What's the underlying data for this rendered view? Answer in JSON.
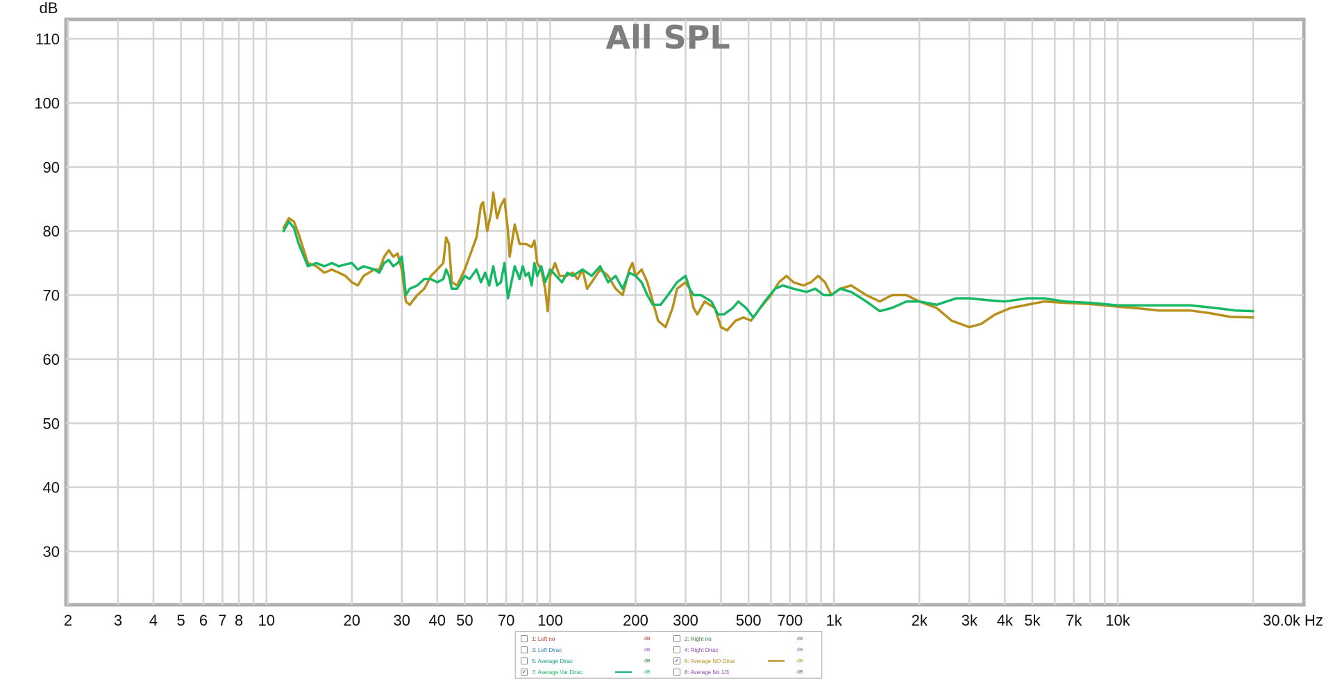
{
  "chart_data": {
    "type": "line",
    "title": "All SPL",
    "ylabel": "dB",
    "xunit": "Hz",
    "xscale": "log",
    "xlim": [
      2,
      30000
    ],
    "ylim": [
      21,
      113
    ],
    "grid": true,
    "yticks": [
      {
        "v": 30,
        "label": "30"
      },
      {
        "v": 40,
        "label": "40"
      },
      {
        "v": 50,
        "label": "50"
      },
      {
        "v": 60,
        "label": "60"
      },
      {
        "v": 70,
        "label": "70"
      },
      {
        "v": 80,
        "label": "80"
      },
      {
        "v": 90,
        "label": "90"
      },
      {
        "v": 100,
        "label": "100"
      },
      {
        "v": 110,
        "label": "110"
      }
    ],
    "xticks": [
      {
        "v": 2,
        "label": "2"
      },
      {
        "v": 3,
        "label": "3"
      },
      {
        "v": 4,
        "label": "4"
      },
      {
        "v": 5,
        "label": "5"
      },
      {
        "v": 6,
        "label": "6"
      },
      {
        "v": 7,
        "label": "7"
      },
      {
        "v": 8,
        "label": "8"
      },
      {
        "v": 10,
        "label": "10"
      },
      {
        "v": 20,
        "label": "20"
      },
      {
        "v": 30,
        "label": "30"
      },
      {
        "v": 40,
        "label": "40"
      },
      {
        "v": 50,
        "label": "50"
      },
      {
        "v": 70,
        "label": "70"
      },
      {
        "v": 100,
        "label": "100"
      },
      {
        "v": 200,
        "label": "200"
      },
      {
        "v": 300,
        "label": "300"
      },
      {
        "v": 500,
        "label": "500"
      },
      {
        "v": 700,
        "label": "700"
      },
      {
        "v": 1000,
        "label": "1k"
      },
      {
        "v": 2000,
        "label": "2k"
      },
      {
        "v": 3000,
        "label": "3k"
      },
      {
        "v": 4000,
        "label": "4k"
      },
      {
        "v": 5000,
        "label": "5k"
      },
      {
        "v": 7000,
        "label": "7k"
      },
      {
        "v": 10000,
        "label": "10k"
      },
      {
        "v": 30000,
        "label": "30.0k Hz"
      }
    ],
    "minor_grid": [
      9,
      60,
      80,
      90,
      400,
      600,
      800,
      900,
      6000,
      8000,
      9000
    ],
    "series": [
      {
        "name": "6: Average NO Dirac",
        "color": "#b8901c",
        "points": [
          [
            11.5,
            80.5
          ],
          [
            12,
            82
          ],
          [
            12.5,
            81.5
          ],
          [
            13,
            79.5
          ],
          [
            14,
            75
          ],
          [
            15,
            74.5
          ],
          [
            16,
            73.5
          ],
          [
            17,
            74
          ],
          [
            18,
            73.5
          ],
          [
            19,
            73
          ],
          [
            20,
            72
          ],
          [
            21,
            71.5
          ],
          [
            22,
            73
          ],
          [
            24,
            74
          ],
          [
            25,
            74
          ],
          [
            26,
            76
          ],
          [
            27,
            77
          ],
          [
            28,
            76
          ],
          [
            29,
            76.5
          ],
          [
            30,
            74
          ],
          [
            31,
            69
          ],
          [
            32,
            68.5
          ],
          [
            34,
            70
          ],
          [
            36,
            71
          ],
          [
            38,
            73
          ],
          [
            40,
            74
          ],
          [
            42,
            75
          ],
          [
            43,
            79
          ],
          [
            44,
            78
          ],
          [
            45,
            72
          ],
          [
            47,
            71.5
          ],
          [
            50,
            74
          ],
          [
            55,
            79
          ],
          [
            57,
            84
          ],
          [
            58,
            84.5
          ],
          [
            60,
            80
          ],
          [
            62,
            83
          ],
          [
            63,
            86
          ],
          [
            65,
            82
          ],
          [
            67,
            84
          ],
          [
            69,
            85
          ],
          [
            71,
            80
          ],
          [
            72,
            76
          ],
          [
            75,
            81
          ],
          [
            78,
            78
          ],
          [
            82,
            78
          ],
          [
            86,
            77.5
          ],
          [
            88,
            78.5
          ],
          [
            90,
            75
          ],
          [
            93,
            74
          ],
          [
            96,
            71
          ],
          [
            98,
            67.5
          ],
          [
            100,
            73
          ],
          [
            104,
            75
          ],
          [
            108,
            73
          ],
          [
            114,
            73
          ],
          [
            120,
            73.5
          ],
          [
            125,
            72.5
          ],
          [
            130,
            74
          ],
          [
            135,
            71
          ],
          [
            140,
            72
          ],
          [
            150,
            74
          ],
          [
            160,
            73
          ],
          [
            170,
            71
          ],
          [
            180,
            70
          ],
          [
            190,
            74
          ],
          [
            195,
            75
          ],
          [
            200,
            73
          ],
          [
            210,
            74
          ],
          [
            220,
            72
          ],
          [
            230,
            69
          ],
          [
            240,
            66
          ],
          [
            255,
            65
          ],
          [
            270,
            68
          ],
          [
            280,
            71
          ],
          [
            300,
            72
          ],
          [
            310,
            71
          ],
          [
            320,
            68
          ],
          [
            330,
            67
          ],
          [
            350,
            69
          ],
          [
            380,
            68
          ],
          [
            400,
            65
          ],
          [
            420,
            64.5
          ],
          [
            450,
            66
          ],
          [
            480,
            66.5
          ],
          [
            510,
            66
          ],
          [
            550,
            68
          ],
          [
            600,
            70
          ],
          [
            640,
            72
          ],
          [
            680,
            73
          ],
          [
            720,
            72
          ],
          [
            780,
            71.5
          ],
          [
            830,
            72
          ],
          [
            880,
            73
          ],
          [
            930,
            72
          ],
          [
            980,
            70
          ],
          [
            1050,
            71
          ],
          [
            1150,
            71.5
          ],
          [
            1300,
            70
          ],
          [
            1450,
            69
          ],
          [
            1600,
            70
          ],
          [
            1800,
            70
          ],
          [
            2000,
            69
          ],
          [
            2300,
            68
          ],
          [
            2600,
            66
          ],
          [
            3000,
            65
          ],
          [
            3300,
            65.5
          ],
          [
            3700,
            67
          ],
          [
            4200,
            68
          ],
          [
            4800,
            68.5
          ],
          [
            5500,
            69
          ],
          [
            6500,
            68.8
          ],
          [
            8000,
            68.6
          ],
          [
            10000,
            68.2
          ],
          [
            12000,
            67.9
          ],
          [
            14000,
            67.6
          ],
          [
            18000,
            67.6
          ],
          [
            21000,
            67.2
          ],
          [
            25000,
            66.6
          ],
          [
            30000,
            66.5
          ]
        ]
      },
      {
        "name": "7: Average Var Dirac",
        "color": "#17b865",
        "points": [
          [
            11.5,
            80
          ],
          [
            12,
            81.5
          ],
          [
            12.5,
            80.5
          ],
          [
            13,
            78
          ],
          [
            14,
            74.5
          ],
          [
            15,
            75
          ],
          [
            16,
            74.5
          ],
          [
            17,
            75
          ],
          [
            18,
            74.5
          ],
          [
            19,
            74.8
          ],
          [
            20,
            75
          ],
          [
            21,
            74
          ],
          [
            22,
            74.5
          ],
          [
            24,
            74
          ],
          [
            25,
            73.5
          ],
          [
            26,
            75
          ],
          [
            27,
            75.5
          ],
          [
            28,
            74.5
          ],
          [
            29,
            75
          ],
          [
            30,
            76
          ],
          [
            31,
            70
          ],
          [
            32,
            71
          ],
          [
            34,
            71.5
          ],
          [
            36,
            72.5
          ],
          [
            38,
            72.5
          ],
          [
            40,
            72
          ],
          [
            42,
            72.5
          ],
          [
            43,
            74
          ],
          [
            44,
            73
          ],
          [
            45,
            71
          ],
          [
            47,
            71
          ],
          [
            50,
            73
          ],
          [
            52,
            72.5
          ],
          [
            55,
            74
          ],
          [
            57,
            72
          ],
          [
            59,
            73.5
          ],
          [
            61,
            71.5
          ],
          [
            63,
            74.5
          ],
          [
            65,
            71.5
          ],
          [
            67,
            72
          ],
          [
            69,
            75
          ],
          [
            71,
            69.5
          ],
          [
            73,
            72
          ],
          [
            75,
            74.5
          ],
          [
            78,
            72.5
          ],
          [
            80,
            74.5
          ],
          [
            82,
            73
          ],
          [
            84,
            73.5
          ],
          [
            86,
            71.5
          ],
          [
            88,
            75
          ],
          [
            90,
            73
          ],
          [
            93,
            74.5
          ],
          [
            96,
            72
          ],
          [
            98,
            73
          ],
          [
            100,
            74
          ],
          [
            105,
            73
          ],
          [
            110,
            72
          ],
          [
            115,
            73.5
          ],
          [
            120,
            73
          ],
          [
            130,
            74
          ],
          [
            140,
            73
          ],
          [
            150,
            74.5
          ],
          [
            160,
            72
          ],
          [
            170,
            73
          ],
          [
            180,
            71
          ],
          [
            190,
            73.5
          ],
          [
            200,
            73
          ],
          [
            210,
            72
          ],
          [
            220,
            70
          ],
          [
            230,
            68.5
          ],
          [
            245,
            68.5
          ],
          [
            260,
            70
          ],
          [
            280,
            72
          ],
          [
            300,
            73
          ],
          [
            310,
            71
          ],
          [
            320,
            70
          ],
          [
            340,
            70
          ],
          [
            370,
            69
          ],
          [
            390,
            67
          ],
          [
            410,
            67
          ],
          [
            440,
            68
          ],
          [
            460,
            69
          ],
          [
            490,
            68
          ],
          [
            520,
            66.5
          ],
          [
            570,
            69
          ],
          [
            620,
            71
          ],
          [
            660,
            71.5
          ],
          [
            720,
            71
          ],
          [
            800,
            70.5
          ],
          [
            860,
            71
          ],
          [
            920,
            70
          ],
          [
            980,
            70
          ],
          [
            1050,
            71
          ],
          [
            1150,
            70.5
          ],
          [
            1300,
            69
          ],
          [
            1450,
            67.5
          ],
          [
            1600,
            68
          ],
          [
            1800,
            69
          ],
          [
            2000,
            69
          ],
          [
            2300,
            68.5
          ],
          [
            2700,
            69.5
          ],
          [
            3000,
            69.5
          ],
          [
            3500,
            69.2
          ],
          [
            4000,
            69
          ],
          [
            4800,
            69.5
          ],
          [
            5500,
            69.5
          ],
          [
            6500,
            69
          ],
          [
            8000,
            68.8
          ],
          [
            10000,
            68.4
          ],
          [
            14000,
            68.4
          ],
          [
            18000,
            68.4
          ],
          [
            22000,
            68
          ],
          [
            26000,
            67.6
          ],
          [
            30000,
            67.5
          ]
        ]
      }
    ],
    "legend": {
      "items": [
        {
          "label": "1: Left no",
          "checked": false,
          "unit": "dB",
          "color": "#c0392b",
          "unit_color": "#c0392b",
          "swatch": false
        },
        {
          "label": "2: Right no",
          "checked": false,
          "unit": "dB",
          "color": "#2e7d32",
          "unit_color": "#9b59b6",
          "swatch": false
        },
        {
          "label": "3: Left Dirac",
          "checked": false,
          "unit": "dB",
          "color": "#2980b9",
          "unit_color": "#9b59b6",
          "swatch": false
        },
        {
          "label": "4: Right Dirac",
          "checked": false,
          "unit": "dB",
          "color": "#8e44ad",
          "unit_color": "#9b59b6",
          "swatch": false
        },
        {
          "label": "5: Average Dirac",
          "checked": false,
          "unit": "dB",
          "color": "#16a085",
          "unit_color": "#2e7d32",
          "swatch": false
        },
        {
          "label": "6: Average NO Dirac",
          "checked": true,
          "unit": "dB",
          "color": "#b8901c",
          "unit_color": "#b8901c",
          "swatch": true
        },
        {
          "label": "7: Average Var Dirac",
          "checked": true,
          "unit": "dB",
          "color": "#17b865",
          "unit_color": "#17b865",
          "swatch": true
        },
        {
          "label": "8: Average No 1/3",
          "checked": false,
          "unit": "dB",
          "color": "#8e44ad",
          "unit_color": "#8e44ad",
          "swatch": false
        }
      ]
    }
  }
}
